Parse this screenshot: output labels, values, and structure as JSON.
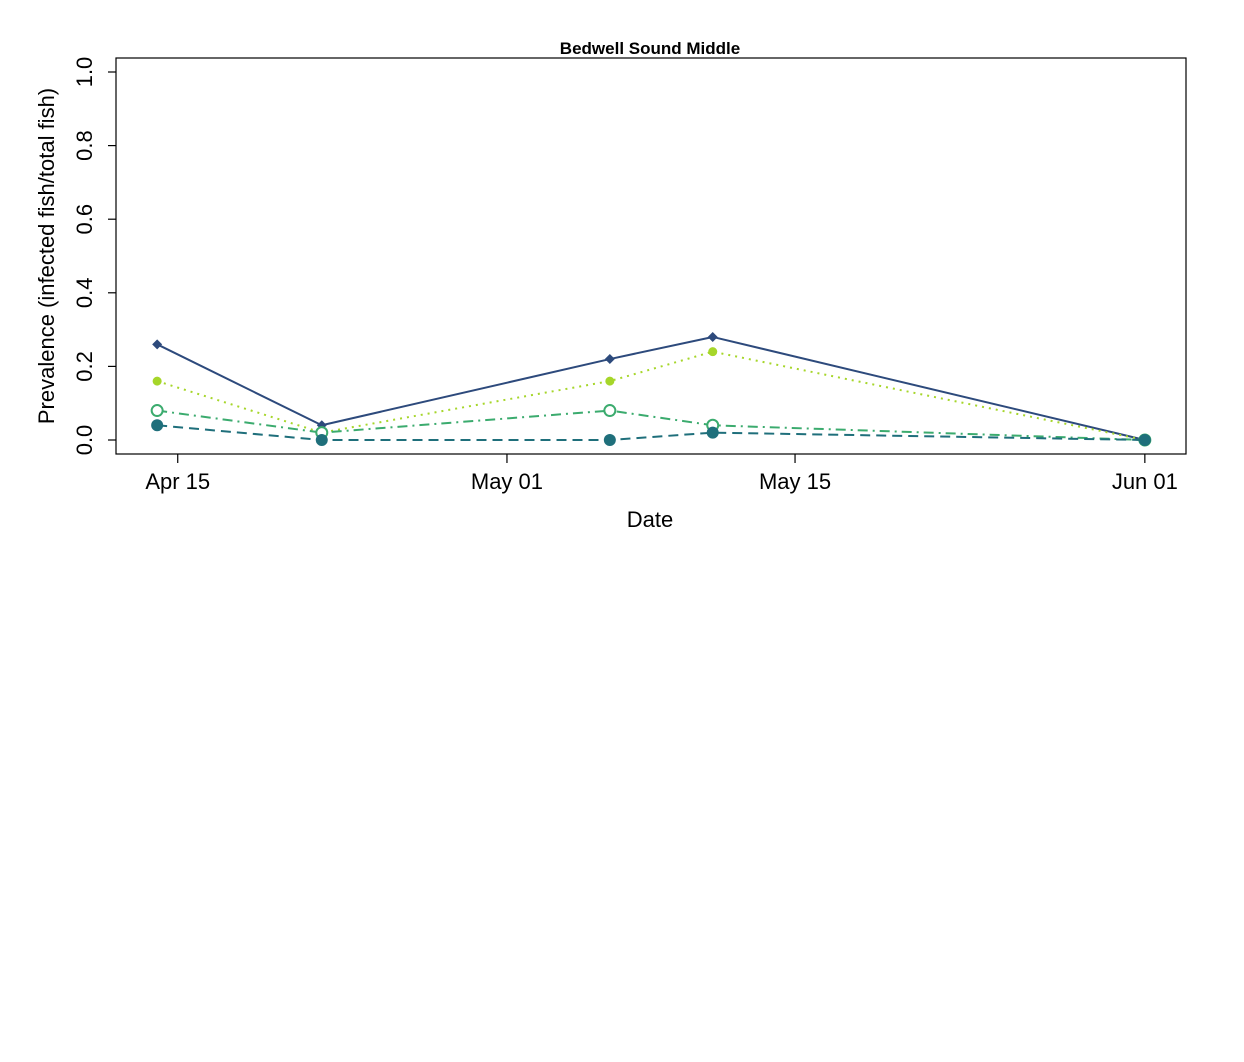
{
  "chart_data": {
    "type": "line",
    "title": "Bedwell Sound Middle",
    "xlabel": "Date",
    "ylabel": "Prevalence (infected fish/total fish)",
    "x_ticks": [
      "Apr 15",
      "May 01",
      "May 15",
      "Jun 01"
    ],
    "y_ticks": [
      "0.0",
      "0.2",
      "0.4",
      "0.6",
      "0.8",
      "1.0"
    ],
    "ylim": [
      0,
      1
    ],
    "xlim": [
      "2021-04-12",
      "2021-06-03"
    ],
    "grid": false,
    "legend": "none",
    "x": [
      "2021-04-14",
      "2021-04-22",
      "2021-05-06",
      "2021-05-11",
      "2021-06-01"
    ],
    "series": [
      {
        "values": [
          0.26,
          0.04,
          0.22,
          0.28,
          0.0
        ],
        "color": "#2d4a7c",
        "dash": "solid",
        "marker": "diamond"
      },
      {
        "values": [
          0.16,
          0.02,
          0.16,
          0.24,
          0.0
        ],
        "color": "#a6d62a",
        "dash": "dotted",
        "marker": "small-filled-circle"
      },
      {
        "values": [
          0.08,
          0.02,
          0.08,
          0.04,
          0.0
        ],
        "color": "#3bab6e",
        "dash": "dashdot",
        "marker": "open-circle"
      },
      {
        "values": [
          0.04,
          0.0,
          0.0,
          0.02,
          0.0
        ],
        "color": "#1f6f7b",
        "dash": "dashed",
        "marker": "filled-circle"
      }
    ]
  }
}
